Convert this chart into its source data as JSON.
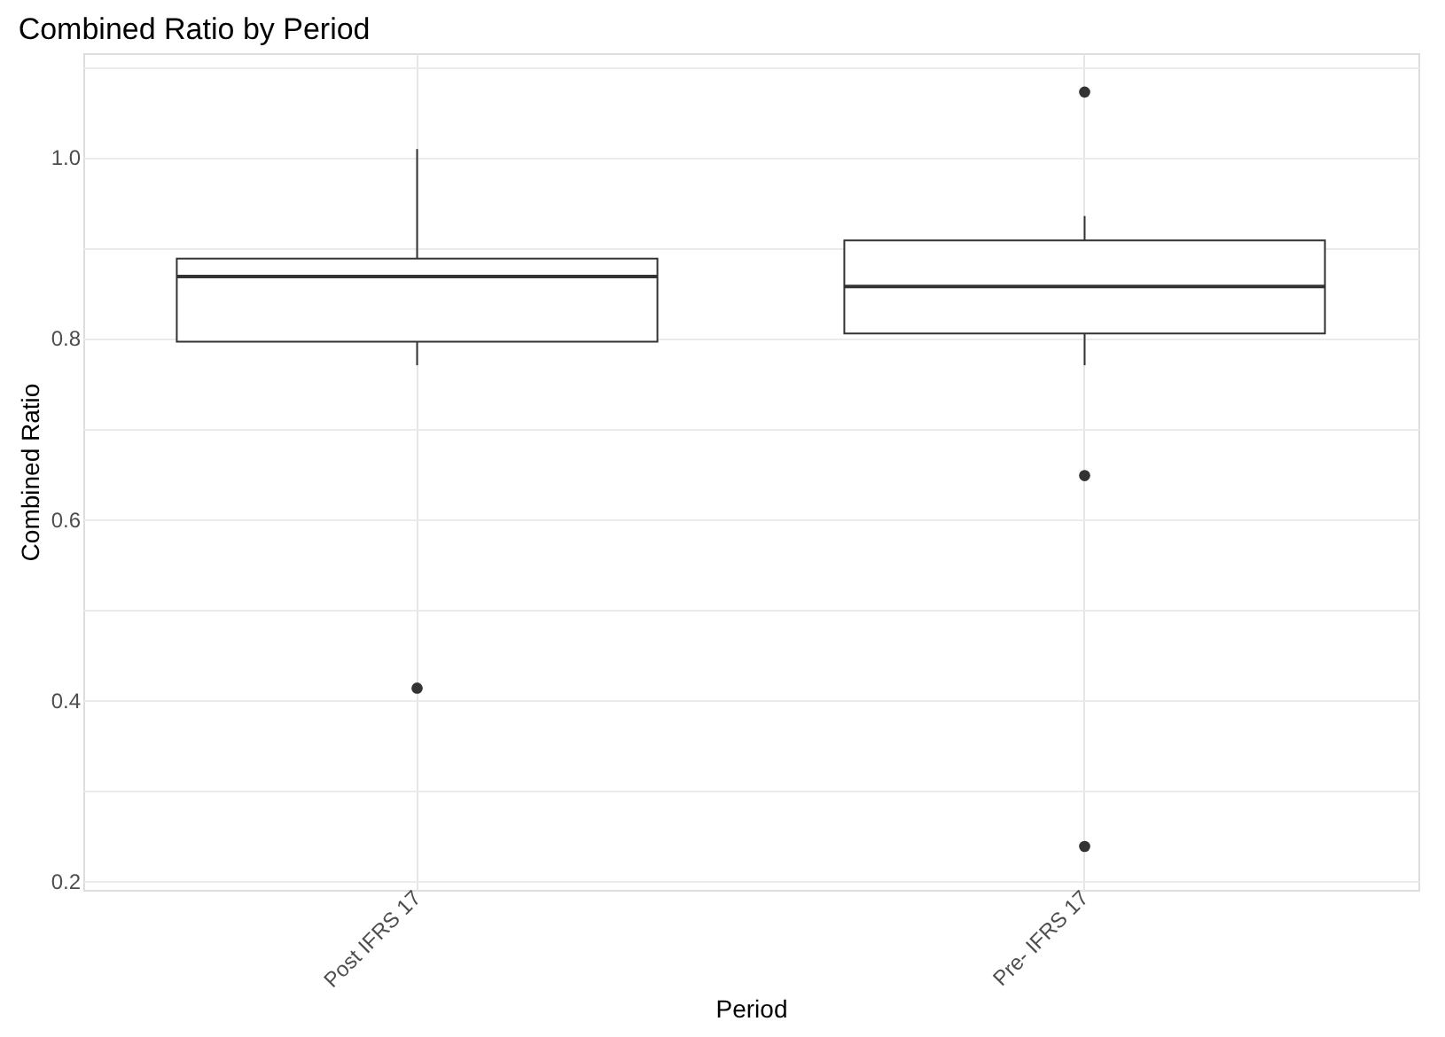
{
  "chart_data": {
    "type": "box",
    "title": "Combined Ratio by Period",
    "xlabel": "Period",
    "ylabel": "Combined Ratio",
    "categories": [
      "Post IFRS 17",
      "Pre- IFRS 17"
    ],
    "boxes": [
      {
        "low": 0.77,
        "q1": 0.796,
        "median": 0.868,
        "q3": 0.888,
        "high": 1.009,
        "outliers": [
          0.413
        ]
      },
      {
        "low": 0.77,
        "q1": 0.805,
        "median": 0.857,
        "q3": 0.908,
        "high": 0.935,
        "outliers": [
          1.072,
          0.648,
          0.238
        ]
      }
    ],
    "ylim": [
      0.19,
      1.115
    ],
    "yticks": [
      {
        "value": 0.3,
        "label": null
      },
      {
        "value": 0.5,
        "label": null
      },
      {
        "value": 0.7,
        "label": null
      },
      {
        "value": 0.9,
        "label": null
      },
      {
        "value": 1.1,
        "label": null
      },
      0.2,
      0.4,
      0.6,
      0.8,
      {
        "value": 1,
        "label": "1.0"
      }
    ],
    "grid": true
  }
}
